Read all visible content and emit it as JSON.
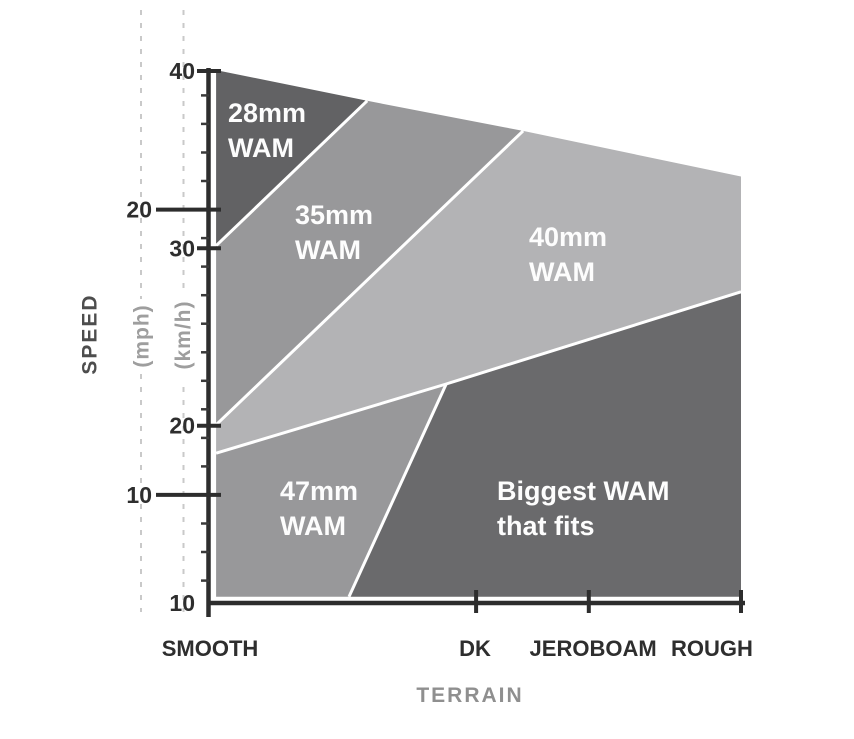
{
  "page": {
    "background": "#ffffff"
  },
  "chart_data": {
    "type": "area",
    "title": "",
    "xlabel": "TERRAIN",
    "ylabel": "SPEED",
    "legend": "none",
    "grid": "dashed-vertical-guides-left-of-axis",
    "x_axis": {
      "label": "TERRAIN",
      "range_note": "qualitative terrain roughness, 0=left axis, 100=right edge",
      "categories": [
        {
          "label": "SMOOTH",
          "fx": 0.56,
          "tick_fx": null
        },
        {
          "label": "DK",
          "fx": 50.19,
          "tick_fx": 50.4
        },
        {
          "label": "JEROBOAM",
          "fx": 72.3,
          "tick_fx": 71.5
        },
        {
          "label": "ROUGH",
          "fx": 94.57,
          "tick_fx": 100
        }
      ]
    },
    "y_axis_mph": {
      "unit_label": "(mph)",
      "major_ticks": [
        20,
        10
      ],
      "minor_ticks_mph": [
        7,
        8,
        9,
        11,
        12,
        13,
        14,
        15,
        16,
        17,
        18,
        19,
        21,
        22,
        23,
        24
      ]
    },
    "y_axis_kmh": {
      "unit_label": "(km/h)",
      "major_ticks": [
        40,
        30,
        20,
        10
      ],
      "ylim": [
        10,
        40
      ]
    },
    "regions": [
      {
        "name": "28mm-wam",
        "label_lines": [
          "28mm",
          "WAM"
        ],
        "color": "#626264",
        "points": [
          [
            1.7,
            40.05
          ],
          [
            30.0,
            38.32
          ],
          [
            1.7,
            30.15
          ]
        ],
        "label_anchor": [
          3.93,
          37.12
        ]
      },
      {
        "name": "35mm-wam",
        "label_lines": [
          "35mm",
          "WAM"
        ],
        "color": "#98989a",
        "points": [
          [
            1.7,
            30.15
          ],
          [
            30.0,
            38.32
          ],
          [
            59.2,
            36.62
          ],
          [
            1.7,
            20.05
          ]
        ],
        "label_anchor": [
          16.48,
          31.37
        ]
      },
      {
        "name": "40mm-wam",
        "label_lines": [
          "40mm",
          "WAM"
        ],
        "color": "#b3b3b5",
        "points": [
          [
            1.7,
            20.05
          ],
          [
            59.2,
            36.62
          ],
          [
            100,
            34.05
          ],
          [
            100,
            27.55
          ],
          [
            44.8,
            22.35
          ],
          [
            1.7,
            18.45
          ]
        ],
        "label_anchor": [
          60.3,
          30.13
        ]
      },
      {
        "name": "47mm-wam",
        "label_lines": [
          "47mm",
          "WAM"
        ],
        "color": "#98989a",
        "points": [
          [
            1.7,
            18.45
          ],
          [
            44.8,
            22.35
          ],
          [
            26.6,
            10.35
          ],
          [
            1.7,
            10.35
          ]
        ],
        "label_anchor": [
          13.67,
          15.81
        ]
      },
      {
        "name": "biggest-wam-that-fits",
        "label_lines": [
          "Biggest WAM",
          "that fits"
        ],
        "color": "#6a6a6c",
        "points": [
          [
            44.8,
            22.35
          ],
          [
            100,
            27.55
          ],
          [
            100,
            10.35
          ],
          [
            26.6,
            10.35
          ]
        ],
        "label_anchor": [
          54.31,
          15.81
        ]
      }
    ],
    "separators": [
      [
        [
          1.7,
          30.15
        ],
        [
          30.0,
          38.32
        ]
      ],
      [
        [
          1.7,
          20.05
        ],
        [
          59.2,
          36.62
        ]
      ],
      [
        [
          1.7,
          18.45
        ],
        [
          44.8,
          22.35
        ],
        [
          100,
          27.55
        ]
      ],
      [
        [
          44.8,
          22.35
        ],
        [
          26.6,
          10.35
        ]
      ]
    ],
    "colors": {
      "separator": "#ffffff",
      "axis": "#2d2d2d",
      "region_text": "#fdfdfd",
      "guide_dash": "#c9c9c9"
    }
  }
}
